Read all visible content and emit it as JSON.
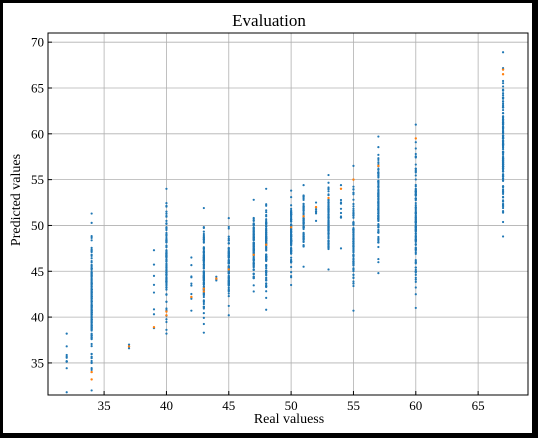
{
  "chart_data": {
    "type": "scatter",
    "title": "Evaluation",
    "xlabel": "Real valuess",
    "ylabel": "Predicted values",
    "xlim": [
      30.5,
      69
    ],
    "ylim": [
      31.5,
      71
    ],
    "xticks": [
      35,
      40,
      45,
      50,
      55,
      60,
      65
    ],
    "yticks": [
      35,
      40,
      45,
      50,
      55,
      60,
      65,
      70
    ],
    "grid": true,
    "legend": "none",
    "series": [
      {
        "color": "#1f77b4",
        "columns": [
          {
            "x": 32,
            "ymin": 31.8,
            "ymax": 38.2,
            "n": 10
          },
          {
            "x": 34,
            "ymin": 32.0,
            "ymax": 51.3,
            "n": 160
          },
          {
            "x": 37,
            "ymin": 36.6,
            "ymax": 37.0,
            "n": 3
          },
          {
            "x": 39,
            "ymin": 38.8,
            "ymax": 47.3,
            "n": 8
          },
          {
            "x": 40,
            "ymin": 38.2,
            "ymax": 54.0,
            "n": 110
          },
          {
            "x": 42,
            "ymin": 40.7,
            "ymax": 46.5,
            "n": 10
          },
          {
            "x": 43,
            "ymin": 38.3,
            "ymax": 51.9,
            "n": 110
          },
          {
            "x": 44,
            "ymin": 44.0,
            "ymax": 44.4,
            "n": 3
          },
          {
            "x": 45,
            "ymin": 40.2,
            "ymax": 50.8,
            "n": 90
          },
          {
            "x": 47,
            "ymin": 42.8,
            "ymax": 52.8,
            "n": 110
          },
          {
            "x": 48,
            "ymin": 40.8,
            "ymax": 54.0,
            "n": 100
          },
          {
            "x": 50,
            "ymin": 43.5,
            "ymax": 53.8,
            "n": 110
          },
          {
            "x": 51,
            "ymin": 45.5,
            "ymax": 54.4,
            "n": 80
          },
          {
            "x": 52,
            "ymin": 50.5,
            "ymax": 52.5,
            "n": 6
          },
          {
            "x": 53,
            "ymin": 45.2,
            "ymax": 55.5,
            "n": 110
          },
          {
            "x": 54,
            "ymin": 47.5,
            "ymax": 54.4,
            "n": 10
          },
          {
            "x": 55,
            "ymin": 40.7,
            "ymax": 56.5,
            "n": 110
          },
          {
            "x": 57,
            "ymin": 44.8,
            "ymax": 59.7,
            "n": 120
          },
          {
            "x": 60,
            "ymin": 41.0,
            "ymax": 61.0,
            "n": 120
          },
          {
            "x": 67,
            "ymin": 48.8,
            "ymax": 68.9,
            "n": 160
          }
        ]
      },
      {
        "color": "#ff7f0e",
        "points": [
          {
            "x": 34,
            "y": 33.2
          },
          {
            "x": 34,
            "y": 34.0
          },
          {
            "x": 37,
            "y": 36.8
          },
          {
            "x": 39,
            "y": 38.9
          },
          {
            "x": 40,
            "y": 40.2
          },
          {
            "x": 40,
            "y": 40.6
          },
          {
            "x": 42,
            "y": 42.2
          },
          {
            "x": 43,
            "y": 43.1
          },
          {
            "x": 43,
            "y": 42.8
          },
          {
            "x": 44,
            "y": 44.2
          },
          {
            "x": 45,
            "y": 45.2
          },
          {
            "x": 47,
            "y": 46.8
          },
          {
            "x": 48,
            "y": 47.9
          },
          {
            "x": 50,
            "y": 49.8
          },
          {
            "x": 51,
            "y": 51.0
          },
          {
            "x": 52,
            "y": 52.0
          },
          {
            "x": 53,
            "y": 53.0
          },
          {
            "x": 54,
            "y": 54.0
          },
          {
            "x": 55,
            "y": 55.0
          },
          {
            "x": 57,
            "y": 56.5
          },
          {
            "x": 60,
            "y": 59.5
          },
          {
            "x": 67,
            "y": 66.5
          },
          {
            "x": 67,
            "y": 67.0
          }
        ]
      }
    ]
  }
}
